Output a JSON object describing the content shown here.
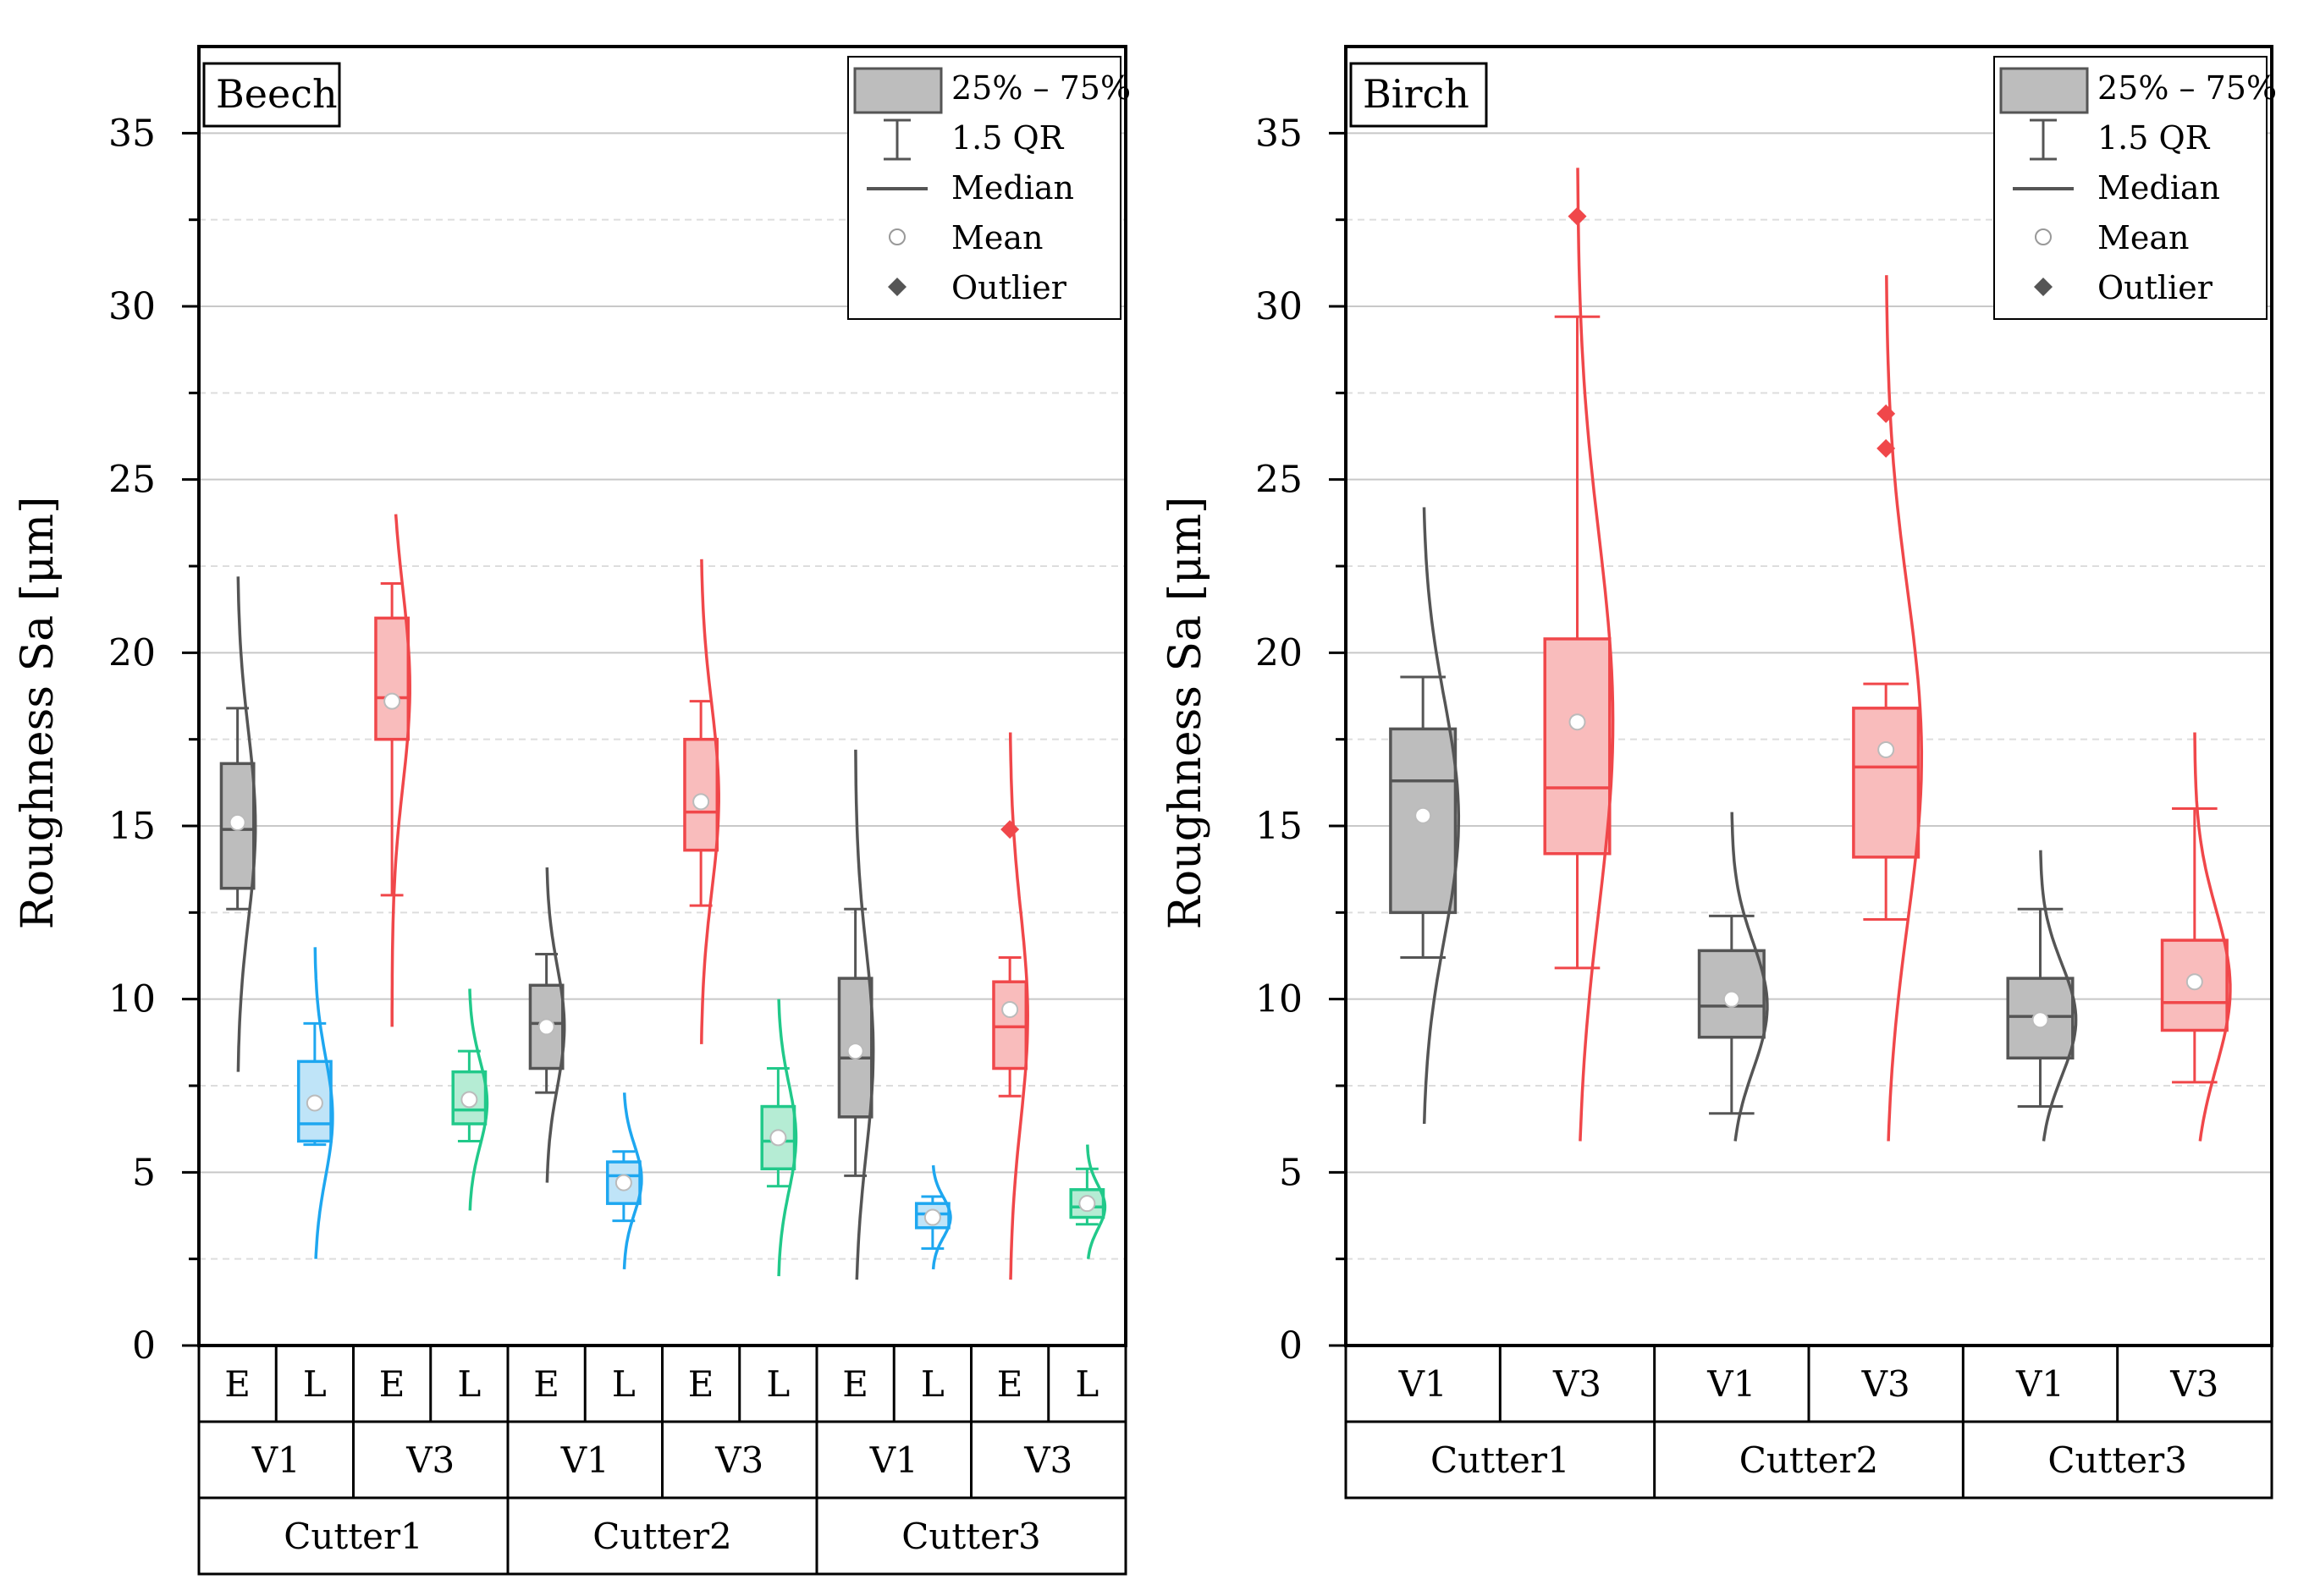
{
  "chart_data": [
    {
      "type": "box",
      "title": "Beech",
      "ylabel": "Roughness Sa [μm]",
      "xlabel": "",
      "ylim": [
        0,
        37.5
      ],
      "yticks": [
        0,
        5,
        10,
        15,
        20,
        25,
        30,
        35
      ],
      "grid": true,
      "legend_position": "top-right",
      "legend": [
        "25% – 75%",
        "1.5 QR",
        "Median",
        "Mean",
        "Outlier"
      ],
      "x_levels": {
        "level1": [
          "E",
          "L",
          "E",
          "L",
          "E",
          "L",
          "E",
          "L",
          "E",
          "L",
          "E",
          "L"
        ],
        "level2": [
          "V1",
          "V3",
          "V1",
          "V3",
          "V1",
          "V3"
        ],
        "level3": [
          "Cutter1",
          "Cutter2",
          "Cutter3"
        ]
      },
      "boxes": [
        {
          "group": "Cutter1 V1 E",
          "color": "#555555",
          "fill": "#bdbdbd",
          "q1": 13.2,
          "median": 14.9,
          "q3": 16.8,
          "whisker_low": 12.6,
          "whisker_high": 18.4,
          "mean": 15.1,
          "outliers": [],
          "dist_min": 7.9,
          "dist_max": 22.2,
          "dist_peak": 15.0
        },
        {
          "group": "Cutter1 V1 L",
          "color": "#1ea7f0",
          "fill": "#bfe4f8",
          "q1": 5.9,
          "median": 6.4,
          "q3": 8.2,
          "whisker_low": 5.8,
          "whisker_high": 9.3,
          "mean": 7.0,
          "outliers": [],
          "dist_min": 2.5,
          "dist_max": 11.5,
          "dist_peak": 6.6
        },
        {
          "group": "Cutter1 V3 E",
          "color": "#f0474a",
          "fill": "#f9bcbc",
          "q1": 17.5,
          "median": 18.7,
          "q3": 21.0,
          "whisker_low": 13.0,
          "whisker_high": 22.0,
          "mean": 18.6,
          "outliers": [],
          "dist_min": 9.2,
          "dist_max": 24.0,
          "dist_peak": 19.0
        },
        {
          "group": "Cutter1 V3 L",
          "color": "#21c98a",
          "fill": "#b5ecd4",
          "q1": 6.4,
          "median": 6.8,
          "q3": 7.9,
          "whisker_low": 5.9,
          "whisker_high": 8.5,
          "mean": 7.1,
          "outliers": [],
          "dist_min": 3.9,
          "dist_max": 10.3,
          "dist_peak": 7.0
        },
        {
          "group": "Cutter2 V1 E",
          "color": "#555555",
          "fill": "#bdbdbd",
          "q1": 8.0,
          "median": 9.3,
          "q3": 10.4,
          "whisker_low": 7.3,
          "whisker_high": 11.3,
          "mean": 9.2,
          "outliers": [],
          "dist_min": 4.7,
          "dist_max": 13.8,
          "dist_peak": 9.2
        },
        {
          "group": "Cutter2 V1 L",
          "color": "#1ea7f0",
          "fill": "#bfe4f8",
          "q1": 4.1,
          "median": 4.9,
          "q3": 5.3,
          "whisker_low": 3.6,
          "whisker_high": 5.6,
          "mean": 4.7,
          "outliers": [],
          "dist_min": 2.2,
          "dist_max": 7.3,
          "dist_peak": 4.8
        },
        {
          "group": "Cutter2 V3 E",
          "color": "#f0474a",
          "fill": "#f9bcbc",
          "q1": 14.3,
          "median": 15.4,
          "q3": 17.5,
          "whisker_low": 12.7,
          "whisker_high": 18.6,
          "mean": 15.7,
          "outliers": [],
          "dist_min": 8.7,
          "dist_max": 22.7,
          "dist_peak": 15.8
        },
        {
          "group": "Cutter2 V3 L",
          "color": "#21c98a",
          "fill": "#b5ecd4",
          "q1": 5.1,
          "median": 5.9,
          "q3": 6.9,
          "whisker_low": 4.6,
          "whisker_high": 8.0,
          "mean": 6.0,
          "outliers": [],
          "dist_min": 2.0,
          "dist_max": 10.0,
          "dist_peak": 6.0
        },
        {
          "group": "Cutter3 V1 E",
          "color": "#555555",
          "fill": "#bdbdbd",
          "q1": 6.6,
          "median": 8.3,
          "q3": 10.6,
          "whisker_low": 4.9,
          "whisker_high": 12.6,
          "mean": 8.5,
          "outliers": [],
          "dist_min": 1.9,
          "dist_max": 17.2,
          "dist_peak": 8.5
        },
        {
          "group": "Cutter3 V1 L",
          "color": "#1ea7f0",
          "fill": "#bfe4f8",
          "q1": 3.4,
          "median": 3.8,
          "q3": 4.1,
          "whisker_low": 2.8,
          "whisker_high": 4.3,
          "mean": 3.7,
          "outliers": [],
          "dist_min": 2.2,
          "dist_max": 5.2,
          "dist_peak": 3.7
        },
        {
          "group": "Cutter3 V3 E",
          "color": "#f0474a",
          "fill": "#f9bcbc",
          "q1": 8.0,
          "median": 9.2,
          "q3": 10.5,
          "whisker_low": 7.2,
          "whisker_high": 11.2,
          "mean": 9.7,
          "outliers": [
            14.9
          ],
          "dist_min": 1.9,
          "dist_max": 17.7,
          "dist_peak": 9.5
        },
        {
          "group": "Cutter3 V3 L",
          "color": "#21c98a",
          "fill": "#b5ecd4",
          "q1": 3.7,
          "median": 4.0,
          "q3": 4.5,
          "whisker_low": 3.5,
          "whisker_high": 5.1,
          "mean": 4.1,
          "outliers": [],
          "dist_min": 2.5,
          "dist_max": 5.8,
          "dist_peak": 4.0
        }
      ]
    },
    {
      "type": "box",
      "title": "Birch",
      "ylabel": "Roughness Sa [μm]",
      "xlabel": "",
      "ylim": [
        0,
        37.5
      ],
      "yticks": [
        0,
        5,
        10,
        15,
        20,
        25,
        30,
        35
      ],
      "grid": true,
      "legend_position": "top-right",
      "legend": [
        "25% – 75%",
        "1.5 QR",
        "Median",
        "Mean",
        "Outlier"
      ],
      "x_levels": {
        "level1": [
          "V1",
          "V3",
          "V1",
          "V3",
          "V1",
          "V3"
        ],
        "level2": [
          "Cutter1",
          "Cutter2",
          "Cutter3"
        ]
      },
      "boxes": [
        {
          "group": "Cutter1 V1",
          "color": "#555555",
          "fill": "#bdbdbd",
          "q1": 12.5,
          "median": 16.3,
          "q3": 17.8,
          "whisker_low": 11.2,
          "whisker_high": 19.3,
          "mean": 15.3,
          "outliers": [],
          "dist_min": 6.4,
          "dist_max": 24.2,
          "dist_peak": 15.2
        },
        {
          "group": "Cutter1 V3",
          "color": "#f0474a",
          "fill": "#f9bcbc",
          "q1": 14.2,
          "median": 16.1,
          "q3": 20.4,
          "whisker_low": 10.9,
          "whisker_high": 29.7,
          "mean": 18.0,
          "outliers": [
            32.6
          ],
          "dist_min": 5.9,
          "dist_max": 34.0,
          "dist_peak": 18.0
        },
        {
          "group": "Cutter2 V1",
          "color": "#555555",
          "fill": "#bdbdbd",
          "q1": 8.9,
          "median": 9.8,
          "q3": 11.4,
          "whisker_low": 6.7,
          "whisker_high": 12.4,
          "mean": 10.0,
          "outliers": [],
          "dist_min": 5.9,
          "dist_max": 15.4,
          "dist_peak": 9.8
        },
        {
          "group": "Cutter2 V3",
          "color": "#f0474a",
          "fill": "#f9bcbc",
          "q1": 14.1,
          "median": 16.7,
          "q3": 18.4,
          "whisker_low": 12.3,
          "whisker_high": 19.1,
          "mean": 17.2,
          "outliers": [
            25.9,
            26.9
          ],
          "dist_min": 5.9,
          "dist_max": 30.9,
          "dist_peak": 17.0
        },
        {
          "group": "Cutter3 V1",
          "color": "#555555",
          "fill": "#bdbdbd",
          "q1": 8.3,
          "median": 9.5,
          "q3": 10.6,
          "whisker_low": 6.9,
          "whisker_high": 12.6,
          "mean": 9.4,
          "outliers": [],
          "dist_min": 5.9,
          "dist_max": 14.3,
          "dist_peak": 9.4
        },
        {
          "group": "Cutter3 V3",
          "color": "#f0474a",
          "fill": "#f9bcbc",
          "q1": 9.1,
          "median": 9.9,
          "q3": 11.7,
          "whisker_low": 7.6,
          "whisker_high": 15.5,
          "mean": 10.5,
          "outliers": [],
          "dist_min": 5.9,
          "dist_max": 17.7,
          "dist_peak": 10.3
        }
      ]
    }
  ]
}
